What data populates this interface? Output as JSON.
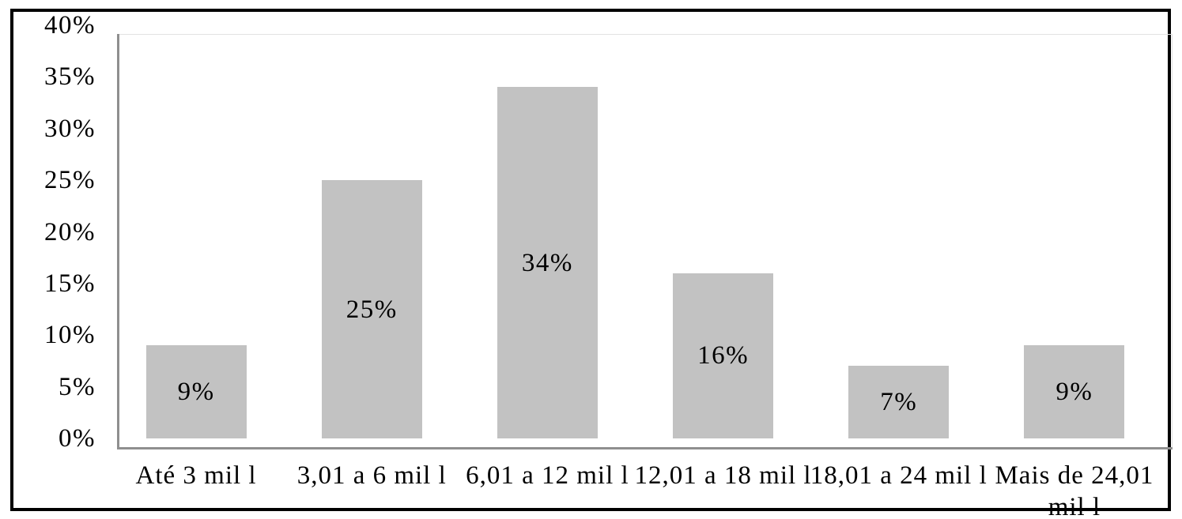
{
  "chart_data": {
    "type": "bar",
    "title": "",
    "xlabel": "",
    "ylabel": "",
    "categories": [
      "Até 3 mil l",
      "3,01 a 6 mil l",
      "6,01 a 12 mil l",
      "12,01 a 18 mil l",
      "18,01 a 24 mil l",
      "Mais de 24,01 mil l"
    ],
    "values": [
      9,
      25,
      34,
      16,
      7,
      9
    ],
    "data_labels": [
      "9%",
      "25%",
      "34%",
      "16%",
      "7%",
      "9%"
    ],
    "ylim": [
      0,
      40
    ],
    "ytick_step": 5,
    "ytick_labels": [
      "0%",
      "5%",
      "10%",
      "15%",
      "20%",
      "25%",
      "30%",
      "35%",
      "40%"
    ],
    "grid": false,
    "legend": "none",
    "data_label_position": "center-inside",
    "bar_color": "#C2C2C2",
    "axis_line_color": "#8F8F8F",
    "plot_border_color": "#E2E2E2",
    "frame_border_color": "#000000",
    "text_color": "#000000"
  }
}
